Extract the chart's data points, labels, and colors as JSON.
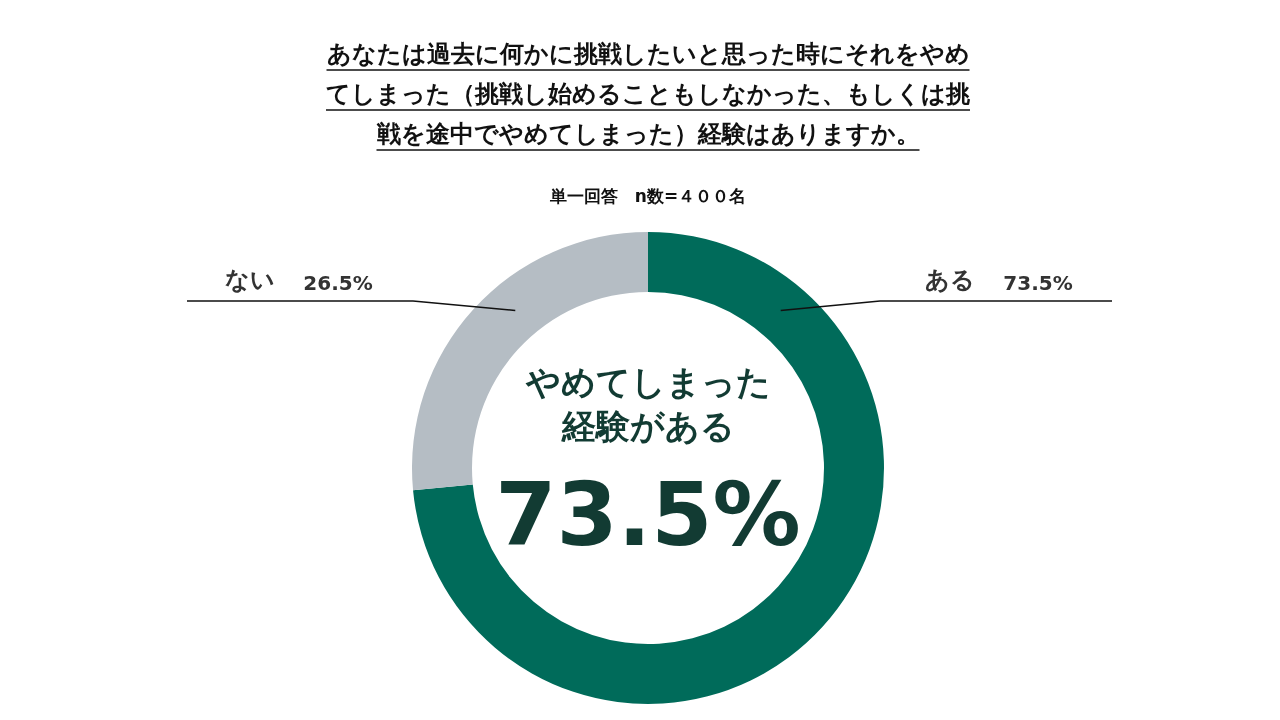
{
  "chart_data": {
    "type": "donut",
    "title": "あなたは過去に何かに挑戦したいと思った時にそれをやめてしまった（挑戦し始めることもしなかった、もしくは挑戦を途中でやめてしまった）経験はありますか。",
    "subtitle": "単一回答　n数=４００名",
    "categories": [
      "ある",
      "ない"
    ],
    "values": [
      73.5,
      26.5
    ],
    "colors": [
      "#006b5a",
      "#b5bdc4"
    ],
    "value_labels": [
      "73.5%",
      "26.5%"
    ],
    "annotations": [
      "やめてしまった",
      "経験がある",
      "73.5%"
    ]
  }
}
